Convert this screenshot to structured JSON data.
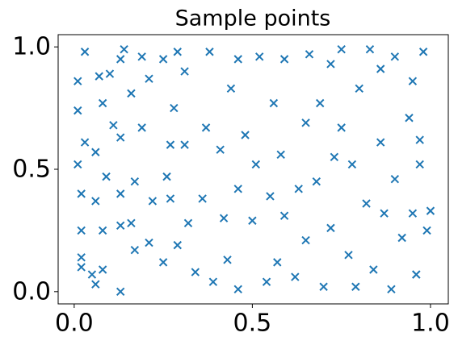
{
  "chart_data": {
    "type": "scatter",
    "title": "Sample points",
    "marker": "x",
    "color": "#1f77b4",
    "xlim": [
      -0.045,
      1.05
    ],
    "ylim": [
      -0.05,
      1.05
    ],
    "xticks": [
      {
        "value": 0,
        "label": "0.0"
      },
      0.5,
      {
        "value": 1,
        "label": "1.0"
      }
    ],
    "yticks": [
      {
        "value": 0,
        "label": "0.0"
      },
      0.5,
      {
        "value": 1,
        "label": "1.0"
      }
    ],
    "x": [
      0.01,
      0.03,
      0.01,
      0.01,
      0.03,
      0.02,
      0.02,
      0.02,
      0.02,
      0.05,
      0.06,
      0.06,
      0.06,
      0.07,
      0.08,
      0.09,
      0.08,
      0.08,
      0.1,
      0.11,
      0.13,
      0.14,
      0.13,
      0.13,
      0.13,
      0.13,
      0.16,
      0.17,
      0.16,
      0.17,
      0.19,
      0.19,
      0.21,
      0.22,
      0.21,
      0.25,
      0.26,
      0.25,
      0.28,
      0.27,
      0.27,
      0.29,
      0.29,
      0.31,
      0.31,
      0.32,
      0.34,
      0.36,
      0.38,
      0.37,
      0.39,
      0.41,
      0.42,
      0.44,
      0.43,
      0.46,
      0.46,
      0.46,
      0.48,
      0.5,
      0.52,
      0.51,
      0.55,
      0.54,
      0.56,
      0.58,
      0.57,
      0.59,
      0.59,
      0.62,
      0.63,
      0.65,
      0.66,
      0.65,
      0.69,
      0.68,
      0.7,
      0.72,
      0.73,
      0.72,
      0.75,
      0.75,
      0.77,
      0.78,
      0.79,
      0.8,
      0.83,
      0.82,
      0.84,
      0.86,
      0.86,
      0.87,
      0.89,
      0.9,
      0.9,
      0.92,
      0.94,
      0.95,
      0.95,
      0.96,
      0.97,
      0.98,
      0.97,
      0.99,
      1.0,
      0.96
    ],
    "y": [
      0.86,
      0.98,
      0.74,
      0.52,
      0.61,
      0.4,
      0.25,
      0.14,
      0.1,
      0.07,
      0.03,
      0.37,
      0.57,
      0.88,
      0.77,
      0.47,
      0.25,
      0.09,
      0.89,
      0.68,
      0.95,
      0.99,
      0.63,
      0.4,
      0.27,
      0.0,
      0.81,
      0.45,
      0.28,
      0.17,
      0.96,
      0.67,
      0.87,
      0.37,
      0.2,
      0.95,
      0.47,
      0.12,
      0.75,
      0.6,
      0.38,
      0.98,
      0.19,
      0.9,
      0.6,
      0.28,
      0.08,
      0.38,
      0.98,
      0.67,
      0.04,
      0.58,
      0.3,
      0.83,
      0.13,
      0.95,
      0.42,
      0.01,
      0.64,
      0.29,
      0.96,
      0.52,
      0.39,
      0.04,
      0.77,
      0.56,
      0.12,
      0.95,
      0.31,
      0.06,
      0.42,
      0.69,
      0.97,
      0.21,
      0.77,
      0.45,
      0.02,
      0.93,
      0.55,
      0.26,
      0.99,
      0.67,
      0.15,
      0.52,
      0.02,
      0.83,
      0.99,
      0.36,
      0.09,
      0.61,
      0.91,
      0.32,
      0.01,
      0.96,
      0.46,
      0.22,
      0.71,
      0.86,
      0.32,
      0.07,
      0.52,
      0.98,
      0.62,
      0.25,
      0.33,
      0.07
    ]
  }
}
